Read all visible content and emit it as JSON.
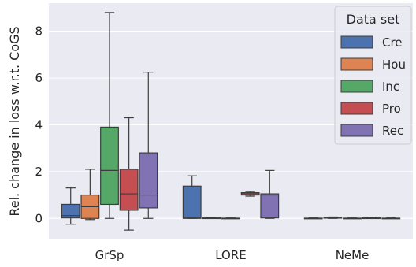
{
  "chart_data": {
    "type": "box",
    "ylabel": "Rel. change in loss w.r.t. CoGS",
    "xlabel": "",
    "ylim": [
      -0.9,
      9.2
    ],
    "yticks": [
      0,
      2,
      4,
      6,
      8
    ],
    "grid": true,
    "legend_title": "Data set",
    "legend_position": "top-right",
    "categories": [
      "GrSp",
      "LORE",
      "NeMe"
    ],
    "series": [
      {
        "name": "Cre",
        "color": "#4c72b0",
        "boxes": [
          {
            "min": -0.25,
            "q1": 0.02,
            "median": 0.12,
            "q3": 0.6,
            "max": 1.3
          },
          {
            "min": 0.0,
            "q1": 0.0,
            "median": 0.02,
            "q3": 1.38,
            "max": 1.82
          },
          {
            "min": 0.0,
            "q1": 0.0,
            "median": 0.0,
            "q3": 0.01,
            "max": 0.02
          }
        ]
      },
      {
        "name": "Hou",
        "color": "#dd8452",
        "boxes": [
          {
            "min": -0.05,
            "q1": 0.0,
            "median": 0.5,
            "q3": 1.0,
            "max": 2.1
          },
          {
            "min": 0.0,
            "q1": 0.0,
            "median": 0.01,
            "q3": 0.02,
            "max": 0.03
          },
          {
            "min": 0.0,
            "q1": 0.01,
            "median": 0.02,
            "q3": 0.04,
            "max": 0.06
          }
        ]
      },
      {
        "name": "Inc",
        "color": "#55a868",
        "boxes": [
          {
            "min": 0.0,
            "q1": 0.6,
            "median": 2.05,
            "q3": 3.9,
            "max": 8.8
          },
          {
            "min": 0.0,
            "q1": 0.0,
            "median": 0.0,
            "q3": 0.01,
            "max": 0.02
          },
          {
            "min": 0.0,
            "q1": 0.0,
            "median": 0.0,
            "q3": 0.01,
            "max": 0.02
          }
        ]
      },
      {
        "name": "Pro",
        "color": "#c44e52",
        "boxes": [
          {
            "min": -0.5,
            "q1": 0.35,
            "median": 1.05,
            "q3": 2.1,
            "max": 4.3
          },
          {
            "min": 0.95,
            "q1": 1.0,
            "median": 1.05,
            "q3": 1.1,
            "max": 1.15
          },
          {
            "min": 0.0,
            "q1": 0.0,
            "median": 0.01,
            "q3": 0.02,
            "max": 0.04
          }
        ]
      },
      {
        "name": "Rec",
        "color": "#8172b3",
        "boxes": [
          {
            "min": 0.0,
            "q1": 0.45,
            "median": 1.0,
            "q3": 2.8,
            "max": 6.25
          },
          {
            "min": 0.0,
            "q1": 0.02,
            "median": 1.0,
            "q3": 1.05,
            "max": 2.05
          },
          {
            "min": 0.0,
            "q1": 0.0,
            "median": 0.0,
            "q3": 0.01,
            "max": 0.02
          }
        ]
      }
    ]
  }
}
